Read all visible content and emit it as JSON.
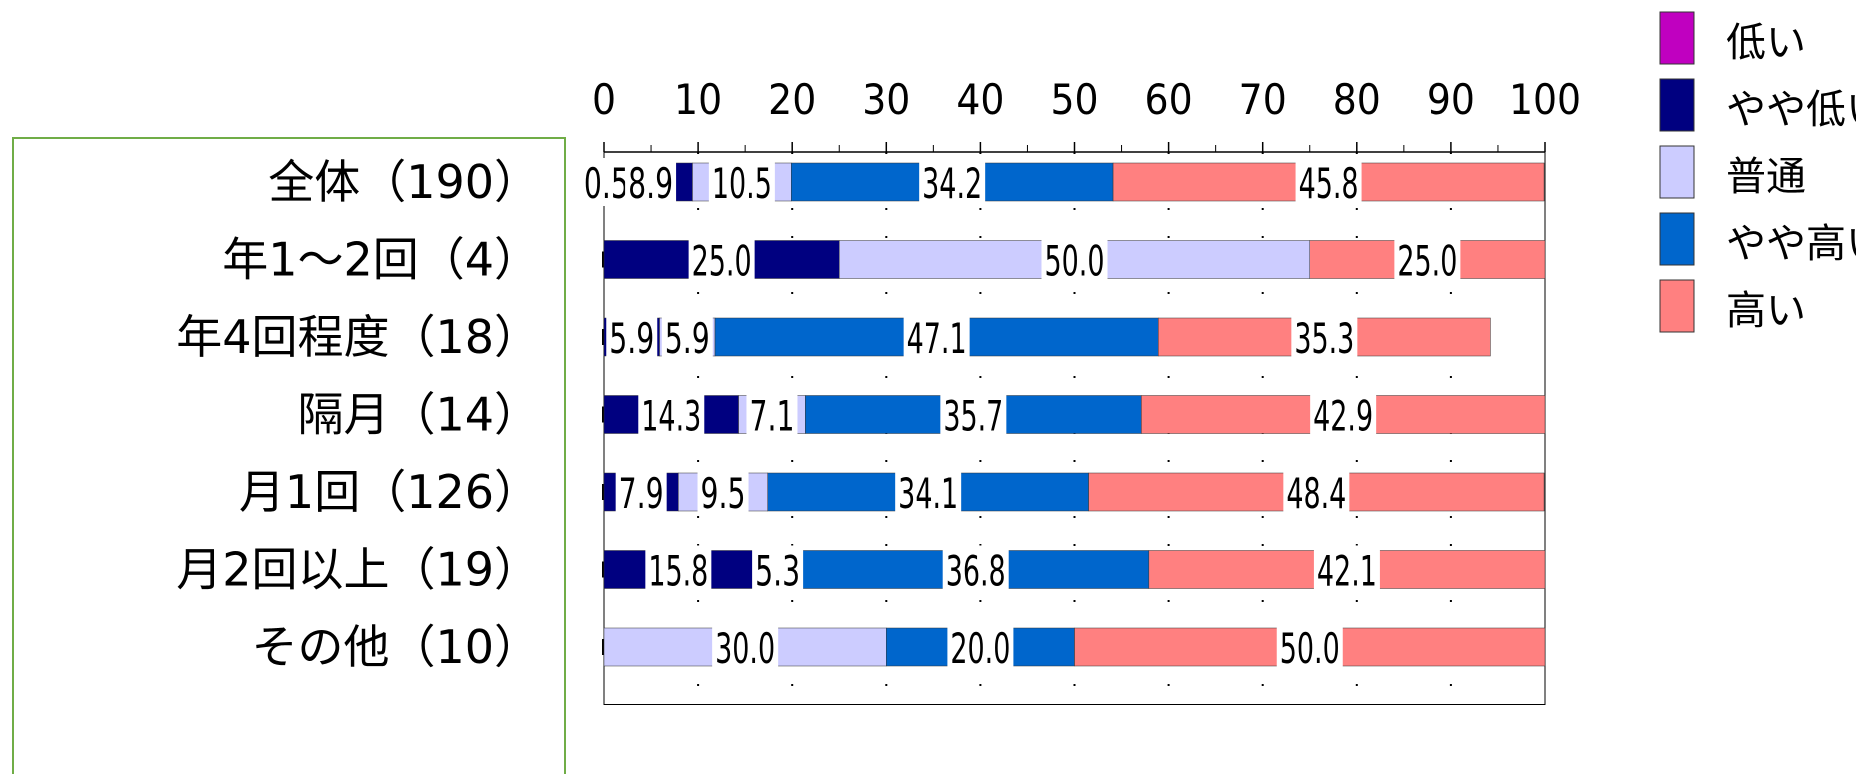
{
  "chart_data": {
    "type": "bar",
    "orientation": "horizontal",
    "stacked": true,
    "percent": true,
    "categories": [
      "全体（190）",
      "年1～2回（4）",
      "年4回程度（18）",
      "隔月（14）",
      "月1回（126）",
      "月2回以上（19）",
      "その他（10）"
    ],
    "xlim": [
      0,
      100
    ],
    "xticks": [
      "0",
      "10",
      "20",
      "30",
      "40",
      "50",
      "60",
      "70",
      "80",
      "90",
      "100"
    ],
    "legend_position": "right",
    "series": [
      {
        "name": "低い",
        "color": "#C000C0",
        "values": [
          0.5,
          0,
          0,
          0,
          0,
          0,
          0
        ],
        "labels": [
          "0.5",
          "",
          "",
          "",
          "",
          "",
          ""
        ]
      },
      {
        "name": "やや低い",
        "color": "#000080",
        "values": [
          8.9,
          25.0,
          5.9,
          14.3,
          7.9,
          15.8,
          0
        ],
        "labels": [
          "8.9",
          "25.0",
          "5.9",
          "14.3",
          "7.9",
          "15.8",
          ""
        ]
      },
      {
        "name": "普通",
        "color": "#CCCCFF",
        "values": [
          10.5,
          50.0,
          5.9,
          7.1,
          9.5,
          5.3,
          30.0
        ],
        "labels": [
          "10.5",
          "50.0",
          "5.9",
          "7.1",
          "9.5",
          "5.3",
          "30.0"
        ]
      },
      {
        "name": "やや高い",
        "color": "#0066CC",
        "values": [
          34.2,
          0,
          47.1,
          35.7,
          34.1,
          36.8,
          20.0
        ],
        "labels": [
          "34.2",
          "",
          "47.1",
          "35.7",
          "34.1",
          "36.8",
          "20.0"
        ]
      },
      {
        "name": "高い",
        "color": "#FF8080",
        "values": [
          45.8,
          25.0,
          35.3,
          42.9,
          48.4,
          42.1,
          50.0
        ],
        "labels": [
          "45.8",
          "25.0",
          "35.3",
          "42.9",
          "48.4",
          "42.1",
          "50.0"
        ]
      }
    ]
  }
}
